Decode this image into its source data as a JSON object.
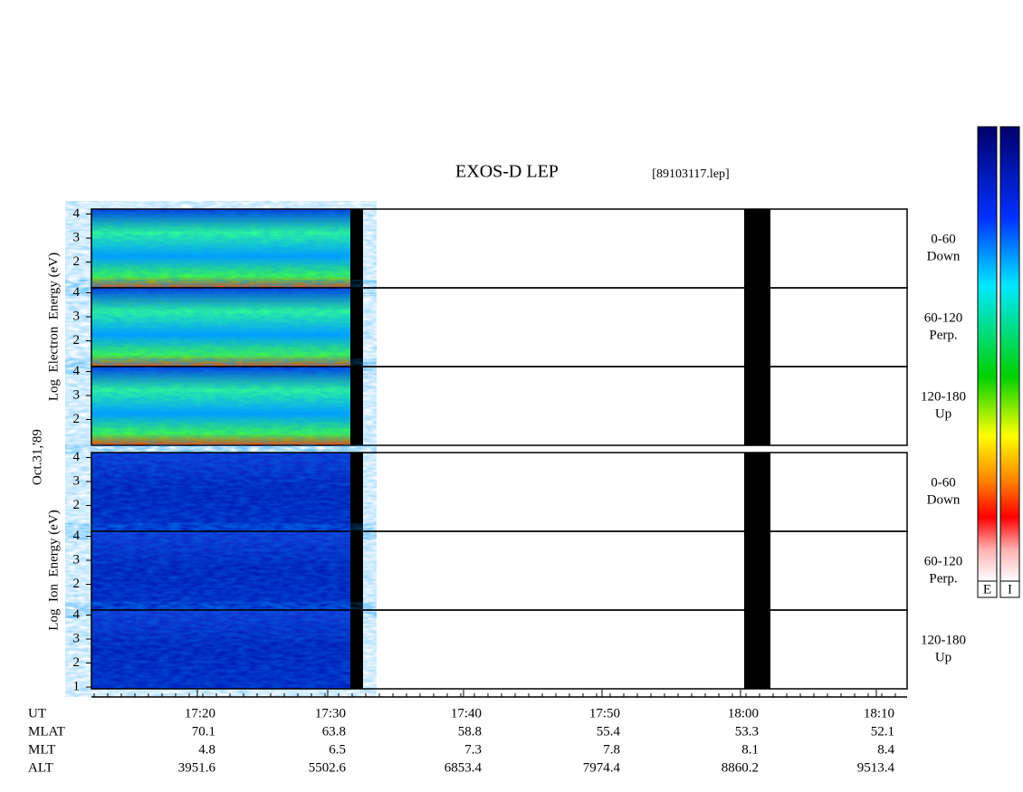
{
  "title": "EXOS-D LEP",
  "file": "[89103117.lep]",
  "date": "Oct.31,'89",
  "groups": [
    {
      "label": "Log  Electron  Energy (eV)",
      "panels": [
        {
          "angle": "0-60",
          "direction": "Down",
          "yticks": [
            4,
            3,
            2
          ]
        },
        {
          "angle": "60-120",
          "direction": "Perp.",
          "yticks": [
            4,
            3,
            2
          ]
        },
        {
          "angle": "120-180",
          "direction": "Up",
          "yticks": [
            4,
            3,
            2
          ]
        }
      ]
    },
    {
      "label": "Log  Ion  Energy (eV)",
      "panels": [
        {
          "angle": "0-60",
          "direction": "Down",
          "yticks": [
            4,
            3,
            2
          ]
        },
        {
          "angle": "60-120",
          "direction": "Perp.",
          "yticks": [
            4,
            3,
            2
          ]
        },
        {
          "angle": "120-180",
          "direction": "Up",
          "yticks": [
            4,
            3,
            2,
            1
          ]
        }
      ]
    }
  ],
  "colorbars": [
    "E",
    "I"
  ],
  "ephemeris": [
    {
      "name": "UT",
      "values": [
        "17:20",
        "17:30",
        "17:40",
        "17:50",
        "18:00",
        "18:10"
      ]
    },
    {
      "name": "MLAT",
      "values": [
        70.1,
        63.8,
        58.8,
        55.4,
        53.3,
        52.1
      ]
    },
    {
      "name": "MLT",
      "values": [
        4.8,
        6.5,
        7.3,
        7.8,
        8.1,
        8.4
      ]
    },
    {
      "name": "ALT",
      "values": [
        3951.6,
        5502.6,
        6853.4,
        7974.4,
        8860.2,
        9513.4
      ]
    }
  ]
}
